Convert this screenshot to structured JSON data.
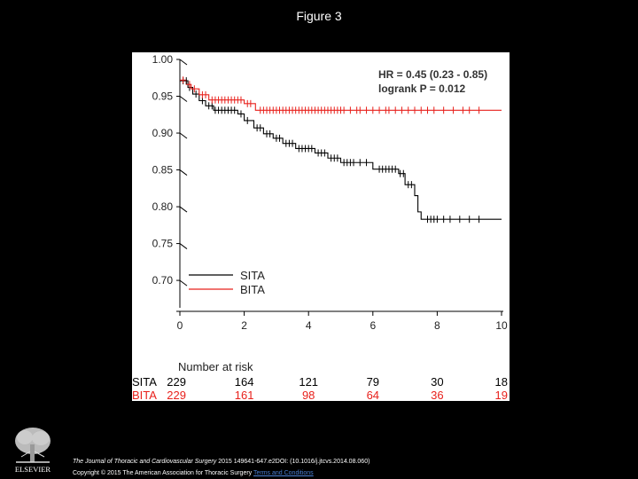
{
  "slide": {
    "title": "Figure 3",
    "journal": "The Journal of Thoracic and Cardiovascular Surgery",
    "citation_rest": " 2015 149641-647.e2DOI: (10.1016/j.jtcvs.2014.08.060)",
    "copyright": "Copyright © 2015 The American Association for Thoracic Surgery ",
    "terms_link": "Terms and Conditions",
    "publisher": "ELSEVIER"
  },
  "colors": {
    "sita": "#000000",
    "bita": "#e8211c"
  },
  "chart_data": {
    "type": "line",
    "subtype": "kaplan-meier",
    "xlim": [
      0,
      10
    ],
    "ylim": [
      0.67,
      1.0
    ],
    "x_ticks": [
      "0",
      "2",
      "4",
      "6",
      "8",
      "10"
    ],
    "y_ticks": [
      "1.00",
      "0.95",
      "0.90",
      "0.85",
      "0.80",
      "0.75",
      "0.70"
    ],
    "annotation_hr": "HR = 0.45 (0.23 - 0.85)",
    "annotation_p": "logrank P = 0.012",
    "legend": [
      "SITA",
      "BITA"
    ],
    "series": [
      {
        "name": "SITA",
        "color": "#000000",
        "steps": [
          [
            0,
            0.971
          ],
          [
            0.25,
            0.962
          ],
          [
            0.4,
            0.953
          ],
          [
            0.6,
            0.944
          ],
          [
            0.8,
            0.937
          ],
          [
            1.05,
            0.931
          ],
          [
            1.8,
            0.926
          ],
          [
            2.0,
            0.917
          ],
          [
            2.3,
            0.907
          ],
          [
            2.6,
            0.899
          ],
          [
            2.9,
            0.893
          ],
          [
            3.2,
            0.886
          ],
          [
            3.6,
            0.879
          ],
          [
            4.2,
            0.873
          ],
          [
            4.6,
            0.866
          ],
          [
            5.0,
            0.86
          ],
          [
            6.0,
            0.851
          ],
          [
            6.8,
            0.845
          ],
          [
            7.0,
            0.83
          ],
          [
            7.3,
            0.815
          ],
          [
            7.4,
            0.793
          ],
          [
            7.5,
            0.783
          ]
        ],
        "end": 10,
        "censor": [
          0.1,
          0.2,
          0.3,
          0.5,
          0.7,
          0.9,
          1.0,
          1.1,
          1.2,
          1.3,
          1.4,
          1.5,
          1.6,
          1.7,
          1.9,
          2.1,
          2.4,
          2.5,
          2.7,
          2.8,
          3.0,
          3.1,
          3.3,
          3.4,
          3.5,
          3.7,
          3.8,
          3.9,
          4.0,
          4.1,
          4.3,
          4.4,
          4.5,
          4.7,
          4.8,
          4.9,
          5.1,
          5.2,
          5.3,
          5.4,
          5.6,
          5.8,
          6.2,
          6.3,
          6.4,
          6.5,
          6.6,
          6.7,
          6.85,
          6.95,
          7.1,
          7.2,
          7.7,
          7.8,
          7.9,
          8.0,
          8.2,
          8.4,
          8.7,
          9.0,
          9.3
        ]
      },
      {
        "name": "BITA",
        "color": "#e8211c",
        "steps": [
          [
            0,
            0.972
          ],
          [
            0.2,
            0.966
          ],
          [
            0.35,
            0.96
          ],
          [
            0.6,
            0.952
          ],
          [
            0.9,
            0.945
          ],
          [
            2.0,
            0.94
          ],
          [
            2.35,
            0.931
          ]
        ],
        "end": 10,
        "censor": [
          0.1,
          0.3,
          0.45,
          0.7,
          0.8,
          1.0,
          1.1,
          1.2,
          1.3,
          1.4,
          1.5,
          1.6,
          1.7,
          1.8,
          1.9,
          2.1,
          2.2,
          2.5,
          2.6,
          2.7,
          2.8,
          2.9,
          3.0,
          3.1,
          3.2,
          3.3,
          3.4,
          3.5,
          3.6,
          3.7,
          3.8,
          3.9,
          4.0,
          4.1,
          4.2,
          4.3,
          4.4,
          4.5,
          4.6,
          4.7,
          4.8,
          4.9,
          5.0,
          5.1,
          5.3,
          5.5,
          5.6,
          5.8,
          6.0,
          6.2,
          6.4,
          6.5,
          6.7,
          6.9,
          7.1,
          7.3,
          7.5,
          7.7,
          7.9,
          8.2,
          8.5,
          8.8,
          9.0,
          9.3
        ]
      }
    ],
    "risk_table": {
      "title": "Number at risk",
      "timepoints": [
        "0",
        "2",
        "4",
        "6",
        "8",
        "10"
      ],
      "rows": [
        {
          "label": "SITA",
          "values": [
            "229",
            "164",
            "121",
            "79",
            "30",
            "18"
          ],
          "color": "#000000"
        },
        {
          "label": "BITA",
          "values": [
            "229",
            "161",
            "98",
            "64",
            "36",
            "19"
          ],
          "color": "#e8211c"
        }
      ]
    }
  }
}
